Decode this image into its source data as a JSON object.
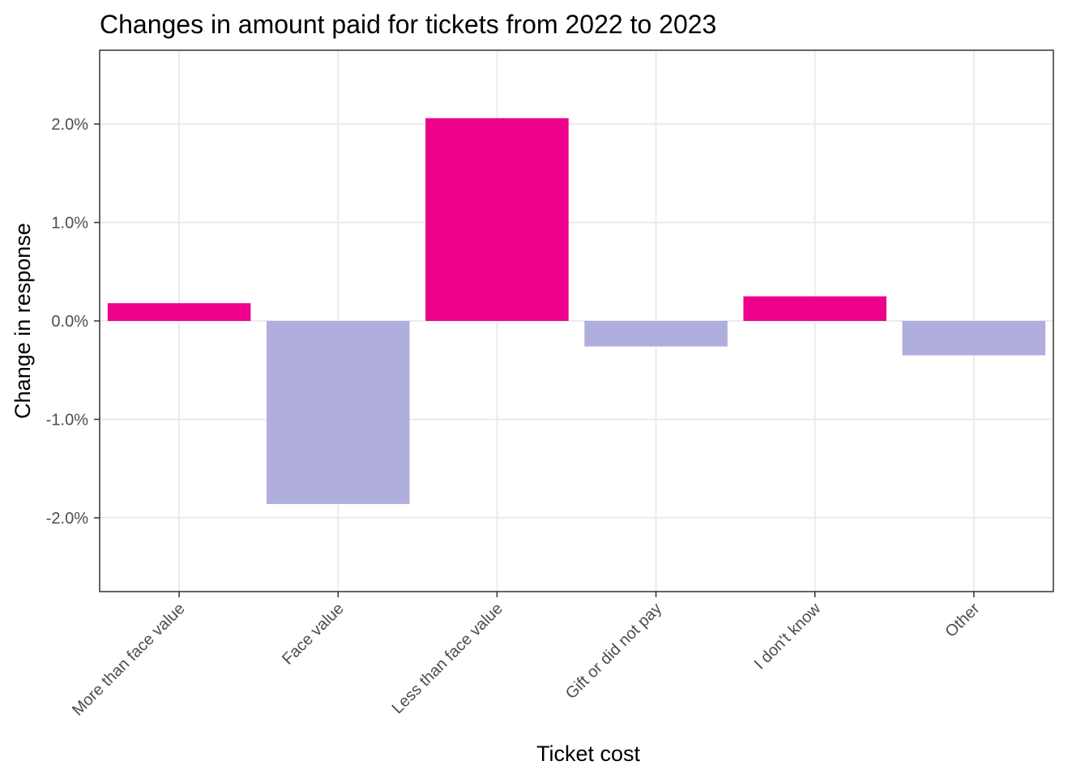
{
  "chart_data": {
    "type": "bar",
    "title": "Changes in amount paid for tickets from 2022 to 2023",
    "xlabel": "Ticket cost",
    "ylabel": "Change in response",
    "categories": [
      "More than face value",
      "Face value",
      "Less than face value",
      "Gift or did not pay",
      "I don't know",
      "Other"
    ],
    "values": [
      0.18,
      -1.86,
      2.06,
      -0.26,
      0.25,
      -0.35
    ],
    "value_unit": "%",
    "ylim": [
      -2.75,
      2.75
    ],
    "yticks": [
      -2.0,
      -1.0,
      0.0,
      1.0,
      2.0
    ],
    "ytick_labels": [
      "-2.0%",
      "-1.0%",
      "0.0%",
      "1.0%",
      "2.0%"
    ],
    "grid": true,
    "legend": "none",
    "colors": {
      "positive": "#EC008C",
      "negative": "#B0AEDD"
    }
  }
}
